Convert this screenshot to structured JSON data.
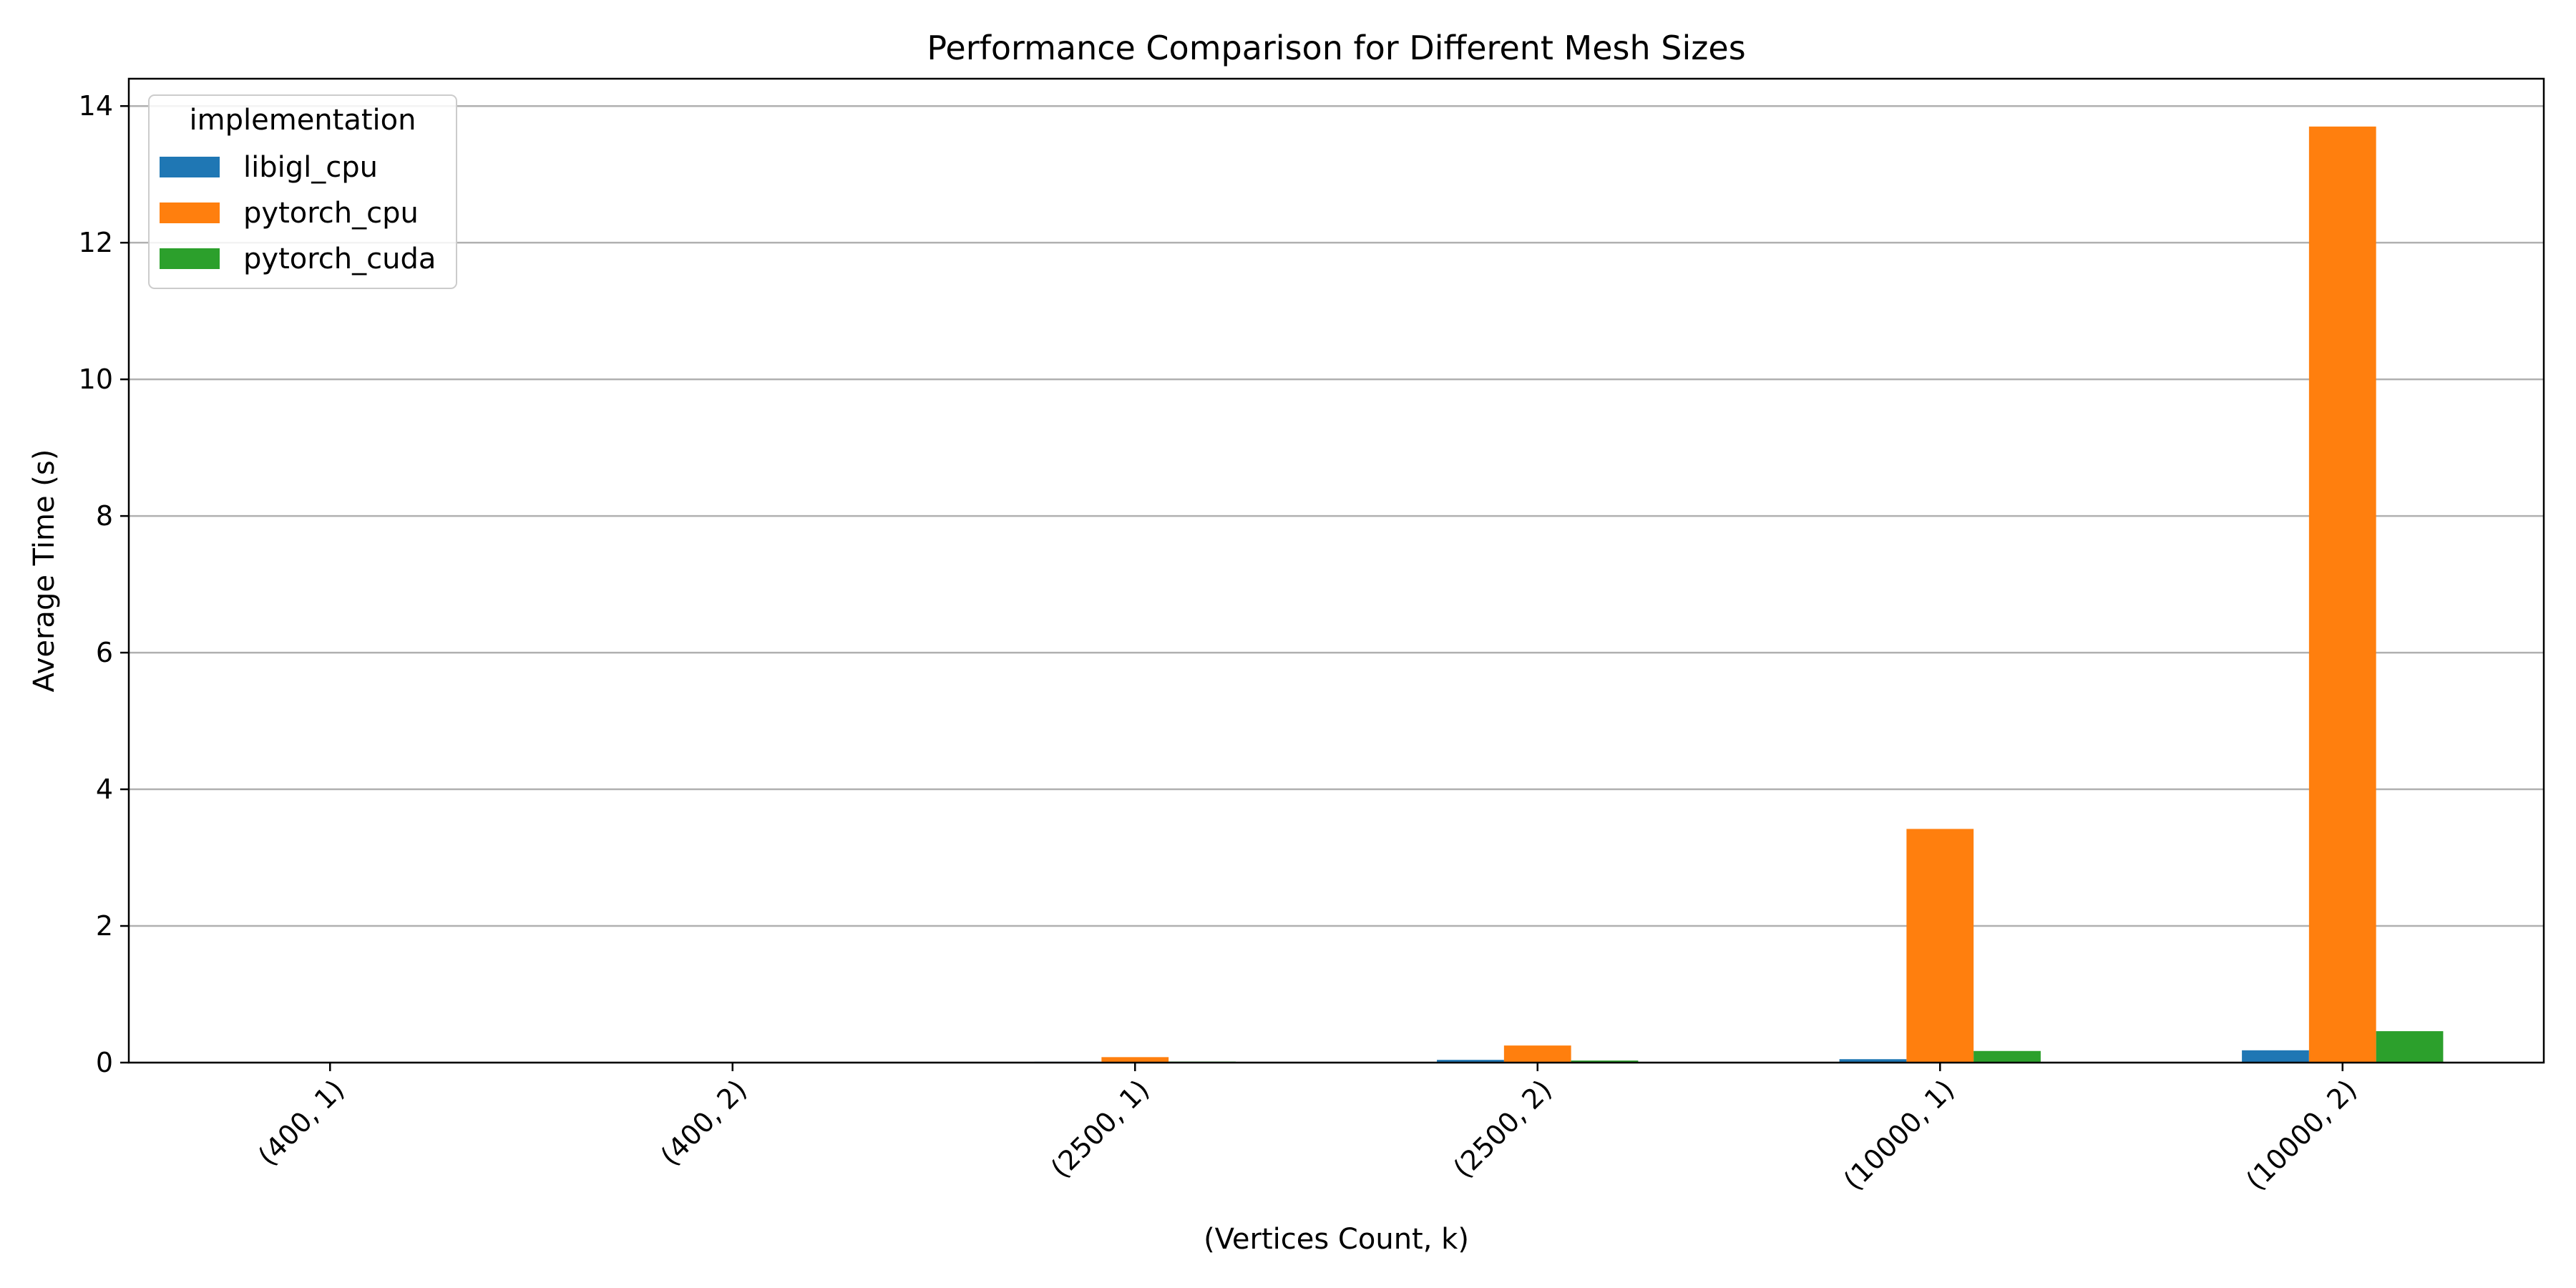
{
  "chart_data": {
    "type": "bar",
    "title": "Performance Comparison for Different Mesh Sizes",
    "xlabel": "(Vertices Count, k)",
    "ylabel": "Average Time (s)",
    "categories": [
      "(400, 1)",
      "(400, 2)",
      "(2500, 1)",
      "(2500, 2)",
      "(10000, 1)",
      "(10000, 2)"
    ],
    "ylim": [
      0,
      14.4
    ],
    "yticks": [
      0,
      2,
      4,
      6,
      8,
      10,
      12,
      14
    ],
    "grid": "y",
    "legend": {
      "title": "implementation",
      "placement": "top-left"
    },
    "series": [
      {
        "name": "libigl_cpu",
        "color": "#1f77b4",
        "values": [
          0.002,
          0.003,
          0.012,
          0.04,
          0.05,
          0.18
        ]
      },
      {
        "name": "pytorch_cpu",
        "color": "#ff7f0e",
        "values": [
          0.005,
          0.01,
          0.08,
          0.25,
          3.42,
          13.7
        ]
      },
      {
        "name": "pytorch_cuda",
        "color": "#2ca02c",
        "values": [
          0.003,
          0.005,
          0.015,
          0.03,
          0.17,
          0.46
        ]
      }
    ]
  }
}
